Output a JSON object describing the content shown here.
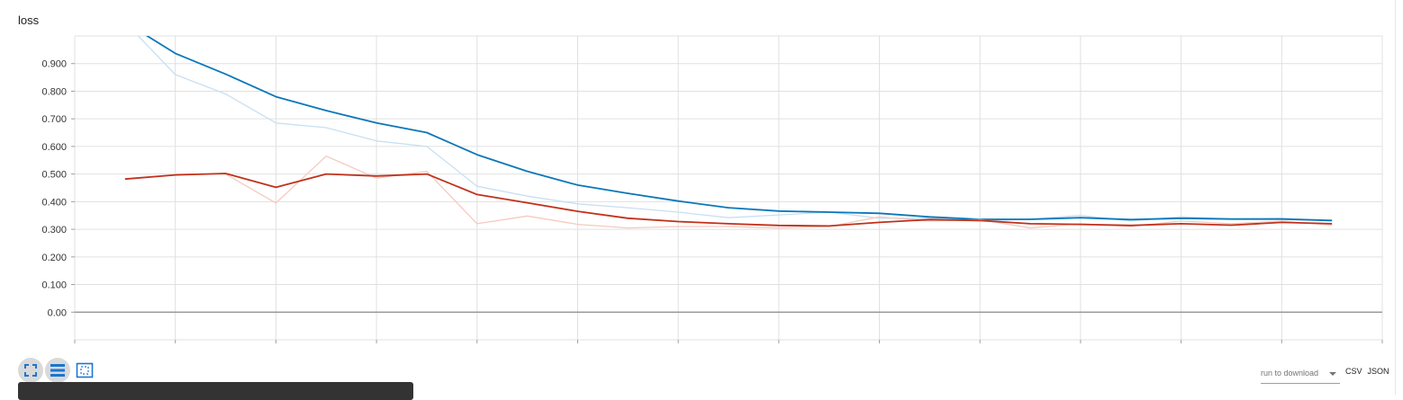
{
  "card": {
    "title": "loss"
  },
  "toolbar": {
    "buttons": [
      {
        "name": "fit-to-data-button",
        "icon": "expand-icon"
      },
      {
        "name": "toggle-log-scale-button",
        "icon": "list-icon"
      },
      {
        "name": "fit-domain-button",
        "icon": "dotted-frame-icon"
      }
    ]
  },
  "download": {
    "run_placeholder": "run to download",
    "csv_label": "CSV",
    "json_label": "JSON"
  },
  "colors": {
    "blue": "#0a77b8",
    "blue_light": "#c7e0f2",
    "red": "#c0311b",
    "red_light": "#f6c9bf",
    "grid": "#e0e0e0",
    "axis": "#9e9e9e"
  },
  "chart_data": {
    "type": "line",
    "title": "loss",
    "xlim": [
      0,
      26
    ],
    "ylim": [
      -0.1,
      1.0
    ],
    "yticks": [
      0.0,
      0.1,
      0.2,
      0.3,
      0.4,
      0.5,
      0.6,
      0.7,
      0.8,
      0.9
    ],
    "ytick_labels": [
      "0.00",
      "0.100",
      "0.200",
      "0.300",
      "0.400",
      "0.500",
      "0.600",
      "0.700",
      "0.800",
      "0.900"
    ],
    "xticks": [
      0,
      2,
      4,
      6,
      8,
      10,
      12,
      14,
      16,
      18,
      20,
      22,
      24,
      26
    ],
    "grid": true,
    "series": [
      {
        "style": "raw",
        "color_key": "blue_light",
        "x": [
          1,
          2,
          3,
          4,
          5,
          6,
          7,
          8,
          9,
          10,
          11,
          12,
          13,
          14,
          15,
          16,
          17,
          18,
          19,
          20,
          21,
          22,
          23,
          24,
          25
        ],
        "y": [
          1.05,
          0.86,
          0.79,
          0.685,
          0.668,
          0.62,
          0.6,
          0.456,
          0.42,
          0.392,
          0.378,
          0.362,
          0.342,
          0.352,
          0.362,
          0.34,
          0.34,
          0.33,
          0.337,
          0.35,
          0.33,
          0.346,
          0.337,
          0.34,
          0.33
        ]
      },
      {
        "style": "smoothed",
        "color_key": "blue",
        "x": [
          1,
          2,
          3,
          4,
          5,
          6,
          7,
          8,
          9,
          10,
          11,
          12,
          13,
          14,
          15,
          16,
          17,
          18,
          19,
          20,
          21,
          22,
          23,
          24,
          25
        ],
        "y": [
          1.05,
          0.937,
          0.862,
          0.78,
          0.73,
          0.685,
          0.65,
          0.57,
          0.51,
          0.46,
          0.43,
          0.402,
          0.378,
          0.366,
          0.362,
          0.358,
          0.345,
          0.336,
          0.336,
          0.342,
          0.335,
          0.34,
          0.337,
          0.337,
          0.332
        ]
      },
      {
        "style": "raw",
        "color_key": "red_light",
        "x": [
          2,
          3,
          4,
          5,
          6,
          7,
          8,
          9,
          10,
          11,
          12,
          13,
          14,
          15,
          16,
          17,
          18,
          19,
          20,
          21,
          22,
          23,
          24,
          25
        ],
        "y": [
          0.5,
          0.5,
          0.395,
          0.565,
          0.485,
          0.51,
          0.32,
          0.348,
          0.318,
          0.305,
          0.31,
          0.31,
          0.305,
          0.31,
          0.345,
          0.33,
          0.335,
          0.305,
          0.32,
          0.31,
          0.33,
          0.32,
          0.33,
          0.315
        ]
      },
      {
        "style": "smoothed",
        "color_key": "red",
        "x": [
          1,
          2,
          3,
          4,
          5,
          6,
          7,
          8,
          9,
          10,
          11,
          12,
          13,
          14,
          15,
          16,
          17,
          18,
          19,
          20,
          21,
          22,
          23,
          24,
          25
        ],
        "y": [
          0.482,
          0.497,
          0.502,
          0.452,
          0.5,
          0.493,
          0.5,
          0.426,
          0.396,
          0.365,
          0.34,
          0.328,
          0.32,
          0.314,
          0.312,
          0.325,
          0.335,
          0.332,
          0.32,
          0.318,
          0.314,
          0.32,
          0.315,
          0.325,
          0.32
        ]
      }
    ]
  }
}
